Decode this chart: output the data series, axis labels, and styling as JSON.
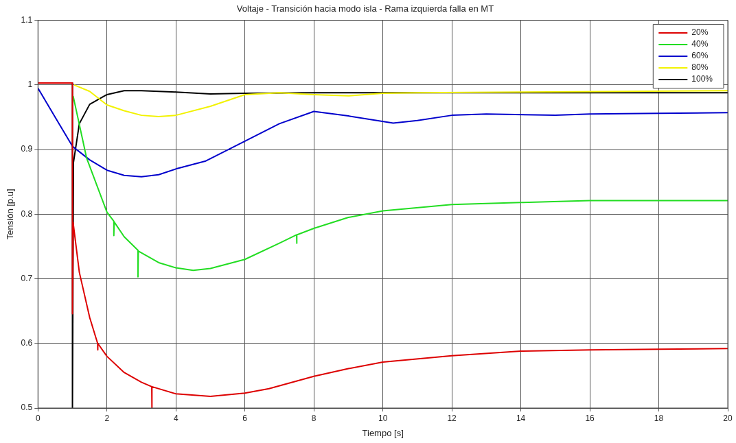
{
  "chart_data": {
    "type": "line",
    "title": "Voltaje - Transición hacia modo isla - Rama izquierda falla en MT",
    "xlabel": "Tiempo [s]",
    "ylabel": "Tensión [p.u]",
    "xlim": [
      0,
      20
    ],
    "xticks": [
      0,
      2,
      4,
      6,
      8,
      10,
      12,
      14,
      16,
      18,
      20
    ],
    "ylim": [
      0.5,
      1.1
    ],
    "yticks": [
      0.5,
      0.6,
      0.7,
      0.8,
      0.9,
      1,
      1.1
    ],
    "grid": true,
    "legend": "top right",
    "line_style": "solid",
    "marker": "none",
    "series": [
      {
        "name": "20%",
        "color": "#dd0000",
        "x": [
          0,
          1,
          1,
          1.02,
          1.2,
          1.5,
          1.73,
          1.73,
          1.74,
          2,
          2.5,
          3,
          3.3,
          3.3,
          3.31,
          4,
          5,
          6,
          6.7,
          8,
          9,
          10,
          12,
          14,
          16,
          18,
          20
        ],
        "values": [
          1.003,
          1.003,
          0.646,
          0.787,
          0.71,
          0.64,
          0.6,
          0.59,
          0.6,
          0.58,
          0.555,
          0.54,
          0.533,
          0.5,
          0.533,
          0.522,
          0.518,
          0.523,
          0.53,
          0.549,
          0.561,
          0.571,
          0.581,
          0.588,
          0.59,
          0.591,
          0.592
        ]
      },
      {
        "name": "40%",
        "color": "#22dd22",
        "x": [
          1.02,
          1.41,
          2,
          2.2,
          2.2,
          2.21,
          2.5,
          2.9,
          2.9,
          2.91,
          3.5,
          4,
          4.5,
          5,
          6,
          7,
          7.5,
          7.5,
          7.51,
          8,
          9,
          10,
          12,
          14,
          16,
          20
        ],
        "values": [
          0.983,
          0.887,
          0.803,
          0.789,
          0.767,
          0.788,
          0.765,
          0.744,
          0.703,
          0.743,
          0.725,
          0.717,
          0.713,
          0.716,
          0.73,
          0.755,
          0.768,
          0.755,
          0.768,
          0.778,
          0.795,
          0.805,
          0.815,
          0.818,
          0.821,
          0.821
        ]
      },
      {
        "name": "60%",
        "color": "#0000cc",
        "x": [
          0,
          0.5,
          1,
          1.5,
          2,
          2.5,
          3,
          3.5,
          4,
          4.85,
          6,
          7,
          8,
          9,
          10.3,
          11,
          12,
          13,
          15,
          16,
          18,
          20
        ],
        "values": [
          0.995,
          0.95,
          0.905,
          0.884,
          0.868,
          0.86,
          0.858,
          0.861,
          0.87,
          0.882,
          0.913,
          0.94,
          0.959,
          0.952,
          0.941,
          0.945,
          0.953,
          0.955,
          0.953,
          0.955,
          0.956,
          0.957
        ]
      },
      {
        "name": "80%",
        "color": "#f2f200",
        "x": [
          1.05,
          1.5,
          2,
          2.5,
          3,
          3.5,
          4,
          5,
          6,
          7,
          8,
          9,
          10,
          11,
          14,
          17,
          20
        ],
        "values": [
          1.0,
          0.99,
          0.969,
          0.96,
          0.953,
          0.951,
          0.953,
          0.967,
          0.985,
          0.988,
          0.985,
          0.983,
          0.987,
          0.988,
          0.989,
          0.99,
          0.991
        ]
      },
      {
        "name": "100%",
        "color": "#000000",
        "x": [
          0,
          1,
          1,
          1.03,
          1.2,
          1.5,
          2,
          2.5,
          3,
          4,
          5,
          6,
          8,
          12,
          16,
          20
        ],
        "values": [
          1.003,
          1.003,
          0.5,
          0.88,
          0.94,
          0.97,
          0.985,
          0.991,
          0.991,
          0.989,
          0.986,
          0.987,
          0.988,
          0.988,
          0.988,
          0.988
        ]
      }
    ]
  }
}
